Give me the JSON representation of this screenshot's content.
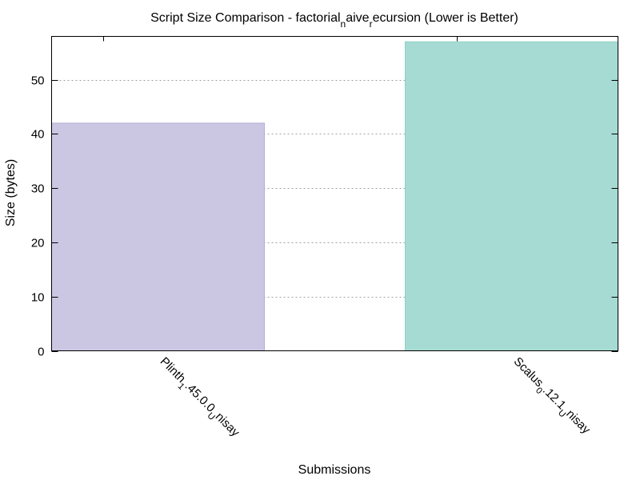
{
  "chart_data": {
    "type": "bar",
    "title": "Script Size Comparison - factorial_naive_recursion (Lower is Better)",
    "title_parts": [
      {
        "text": "Script Size Comparison - factorial",
        "sub": false
      },
      {
        "text": "n",
        "sub": true
      },
      {
        "text": "aive",
        "sub": false
      },
      {
        "text": "r",
        "sub": true
      },
      {
        "text": "ecursion (Lower is Better)",
        "sub": false
      }
    ],
    "xlabel": "Submissions",
    "ylabel": "Size (bytes)",
    "ylim": [
      0,
      58
    ],
    "yticks": [
      0,
      10,
      20,
      30,
      40,
      50
    ],
    "grid": true,
    "categories": [
      "Plinth_1.45.0.0_unisay",
      "Scalus_0.12.1_unisay"
    ],
    "category_parts": [
      [
        {
          "text": "Plinth",
          "sub": false
        },
        {
          "text": "1",
          "sub": true
        },
        {
          "text": ".45.0.0",
          "sub": false
        },
        {
          "text": "U",
          "sub": true
        },
        {
          "text": "nisay",
          "sub": false
        }
      ],
      [
        {
          "text": "Scalus",
          "sub": false
        },
        {
          "text": "0",
          "sub": true
        },
        {
          "text": ".12.1",
          "sub": false
        },
        {
          "text": "U",
          "sub": true
        },
        {
          "text": "nisay",
          "sub": false
        }
      ]
    ],
    "values": [
      42,
      57
    ],
    "colors": [
      "#cbc6e2",
      "#a6dbd3"
    ],
    "bar_stroke_colors": [
      "#b6b0d6",
      "#8ccfc5"
    ]
  }
}
